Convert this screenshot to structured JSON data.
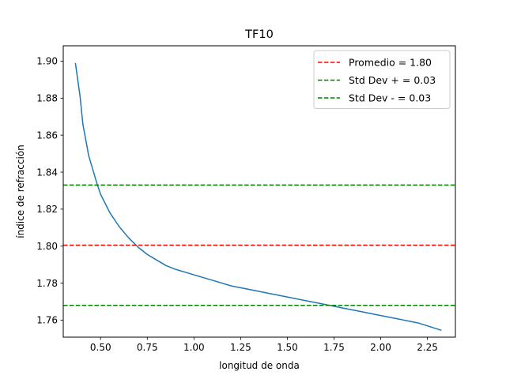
{
  "chart_data": {
    "type": "line",
    "title": "TF10",
    "xlabel": "longitud de onda",
    "ylabel": "índice de refracción",
    "xlim": [
      0.3,
      2.4
    ],
    "ylim": [
      1.7508,
      1.9083
    ],
    "xticks": [
      0.5,
      0.75,
      1.0,
      1.25,
      1.5,
      1.75,
      2.0,
      2.25
    ],
    "xtick_labels": [
      "0.50",
      "0.75",
      "1.00",
      "1.25",
      "1.50",
      "1.75",
      "2.00",
      "2.25"
    ],
    "yticks": [
      1.76,
      1.78,
      1.8,
      1.82,
      1.84,
      1.86,
      1.88,
      1.9
    ],
    "ytick_labels": [
      "1.76",
      "1.78",
      "1.80",
      "1.82",
      "1.84",
      "1.86",
      "1.88",
      "1.90"
    ],
    "grid": false,
    "legend_position": "top-right",
    "series": [
      {
        "color": "#1f77b4",
        "style": "solid",
        "x": [
          0.365,
          0.39,
          0.405,
          0.436,
          0.48,
          0.5,
          0.55,
          0.6,
          0.65,
          0.7,
          0.75,
          0.8,
          0.85,
          0.9,
          1.0,
          1.1,
          1.2,
          1.3,
          1.4,
          1.5,
          1.6,
          1.7,
          1.8,
          1.9,
          2.0,
          2.1,
          2.2,
          2.325
        ],
        "y": [
          1.899,
          1.881,
          1.866,
          1.849,
          1.834,
          1.828,
          1.818,
          1.8105,
          1.8045,
          1.7995,
          1.7955,
          1.7925,
          1.7895,
          1.7875,
          1.7845,
          1.7815,
          1.7785,
          1.7765,
          1.7745,
          1.7725,
          1.7705,
          1.7685,
          1.7665,
          1.7645,
          1.7625,
          1.7605,
          1.7585,
          1.7545
        ]
      },
      {
        "name": "Promedio = 1.80",
        "color": "#ff0000",
        "style": "dashed",
        "hline": 1.8005
      },
      {
        "name": "Std Dev + = 0.03",
        "color": "#008000",
        "style": "dashed",
        "hline": 1.833
      },
      {
        "name": "Std Dev - = 0.03",
        "color": "#008000",
        "style": "dashed",
        "hline": 1.768
      }
    ]
  }
}
